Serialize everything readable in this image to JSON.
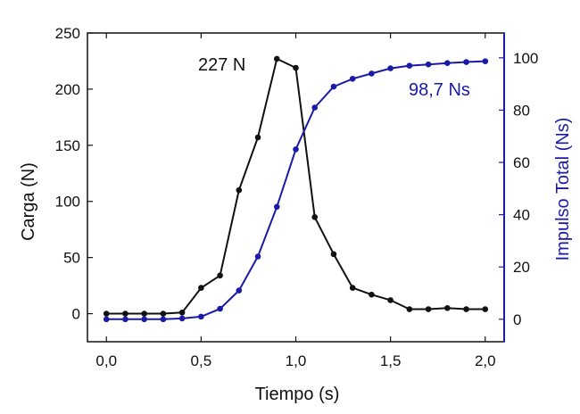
{
  "chart_data": {
    "type": "line",
    "xlabel": "Tiempo (s)",
    "ylabel_left": "Carga (N)",
    "ylabel_right": "Impulso Total (Ns)",
    "xlim": [
      -0.1,
      2.1
    ],
    "ylim_left": [
      -25,
      250
    ],
    "ylim_right": [
      -8.6,
      109.5
    ],
    "x_ticks": [
      0.0,
      0.5,
      1.0,
      1.5,
      2.0
    ],
    "x_tick_labels": [
      "0,0",
      "0,5",
      "1,0",
      "1,5",
      "2,0"
    ],
    "y_left_ticks": [
      0,
      50,
      100,
      150,
      200,
      250
    ],
    "y_left_tick_labels": [
      "0",
      "50",
      "100",
      "150",
      "200",
      "250"
    ],
    "y_right_ticks": [
      0,
      20,
      40,
      60,
      80,
      100
    ],
    "y_right_tick_labels": [
      "0",
      "20",
      "40",
      "60",
      "80",
      "100"
    ],
    "grid": false,
    "series": [
      {
        "axis": "left",
        "color": "#111111",
        "x": [
          0.0,
          0.1,
          0.2,
          0.3,
          0.4,
          0.5,
          0.6,
          0.7,
          0.8,
          0.9,
          1.0,
          1.1,
          1.2,
          1.3,
          1.4,
          1.5,
          1.6,
          1.7,
          1.8,
          1.9,
          2.0
        ],
        "values": [
          0,
          0,
          0,
          0,
          1,
          23,
          34,
          110,
          157,
          227,
          219,
          86,
          53,
          23,
          17,
          12,
          4,
          4,
          5,
          4,
          4
        ]
      },
      {
        "axis": "right",
        "color": "#1a1aa6",
        "x": [
          0.0,
          0.1,
          0.2,
          0.3,
          0.4,
          0.5,
          0.6,
          0.7,
          0.8,
          0.9,
          1.0,
          1.1,
          1.2,
          1.3,
          1.4,
          1.5,
          1.6,
          1.7,
          1.8,
          1.9,
          2.0
        ],
        "values": [
          0,
          0,
          0,
          0,
          0.3,
          1,
          4,
          11,
          24,
          43,
          65,
          81,
          89,
          92,
          94,
          96,
          97,
          97.5,
          98,
          98.4,
          98.7
        ]
      }
    ],
    "annotations": [
      {
        "text": "227 N",
        "color": "#111111"
      },
      {
        "text": "98,7 Ns",
        "color": "#1a1aa6"
      }
    ]
  }
}
